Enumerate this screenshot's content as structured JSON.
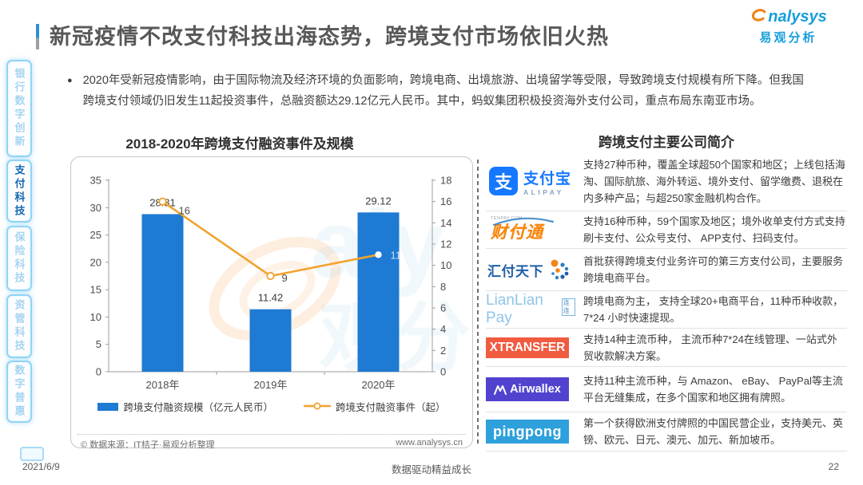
{
  "header": {
    "title": "新冠疫情不改支付科技出海态势，跨境支付市场依旧火热",
    "brand": {
      "name_en": "nalysys",
      "name_cn": "易观分析"
    }
  },
  "sidebar": {
    "items": [
      {
        "label": "银行数字创新",
        "active": false
      },
      {
        "label": "支付科技",
        "active": true
      },
      {
        "label": "保险科技",
        "active": false
      },
      {
        "label": "资管科技",
        "active": false
      },
      {
        "label": "数字普惠",
        "active": false
      }
    ]
  },
  "summary": {
    "bullet": "●",
    "text": "2020年受新冠疫情影响，由于国际物流及经济环境的负面影响，跨境电商、出境旅游、出境留学等受限，导致跨境支付规模有所下降。但我国跨境支付领域仍旧发生11起投资事件，总融资额达29.12亿元人民币。其中，蚂蚁集团积极投资海外支付公司，重点布局东南亚市场。"
  },
  "chart_data": {
    "type": "bar+line",
    "title": "2018-2020年跨境支付融资事件及规模",
    "categories": [
      "2018年",
      "2019年",
      "2020年"
    ],
    "series": [
      {
        "name": "跨境支付融资规模（亿元人民币）",
        "type": "bar",
        "axis": "left",
        "values": [
          28.81,
          11.42,
          29.12
        ],
        "color": "#1e7ad3"
      },
      {
        "name": "跨境支付融资事件（起）",
        "type": "line",
        "axis": "right",
        "values": [
          16,
          9,
          11
        ],
        "color": "#f0a32f"
      }
    ],
    "left_axis": {
      "min": 0,
      "max": 35,
      "ticks": [
        0,
        5,
        10,
        15,
        20,
        25,
        30,
        35
      ]
    },
    "right_axis": {
      "min": 0,
      "max": 18,
      "ticks": [
        0,
        2,
        4,
        6,
        8,
        10,
        12,
        14,
        16,
        18
      ]
    },
    "grid": false,
    "legend_position": "bottom",
    "source_left": "© 数据来源：IT桔子·易观分析整理",
    "source_right": "www.analysys.cn"
  },
  "companies": {
    "title": "跨境支付主要公司简介",
    "rows": [
      {
        "name": "支付宝",
        "logo_cn": "支付宝",
        "logo_en": "ALIPAY",
        "logo_glyph": "支",
        "desc": "支持27种币种，覆盖全球超50个国家和地区；上线包括海淘、国际航旅、海外转运、境外支付、留学缴费、退税在内多种产品；与超250家金融机构合作。"
      },
      {
        "name": "财付通",
        "logo_cn": "财付通",
        "logo_url": "TENPAY.COM",
        "desc": "支持16种币种，59个国家及地区；境外收单支付方式支持刷卡支付、公众号支付、 APP支付、扫码支付。"
      },
      {
        "name": "汇付天下",
        "logo_cn": "汇付天下",
        "desc": "首批获得跨境支付业务许可的第三方支付公司，主要服务跨境电商平台。"
      },
      {
        "name": "LianLian Pay",
        "logo_en": "LianLian Pay",
        "logo_cn": "连连",
        "desc": "跨境电商为主， 支持全球20+电商平台，11种币种收款，7*24 小时快速提现。"
      },
      {
        "name": "XTRANSFER",
        "logo_en": "XTRANSFER",
        "desc": "支持14种主流币种， 主流币种7*24在线管理、一站式外贸收款解决方案。"
      },
      {
        "name": "Airwallex",
        "logo_en": "Airwallex",
        "desc": "支持11种主流币种，与 Amazon、 eBay、 PayPal等主流平台无缝集成，在多个国家和地区拥有牌照。"
      },
      {
        "name": "pingpong",
        "logo_en": "pingpong",
        "desc": "第一个获得欧洲支付牌照的中国民营企业，支持美元、英镑、欧元、日元、澳元、加元、新加坡币。"
      }
    ]
  },
  "footer": {
    "date": "2021/6/9",
    "slogan": "数据驱动精益成长",
    "page": "22"
  }
}
